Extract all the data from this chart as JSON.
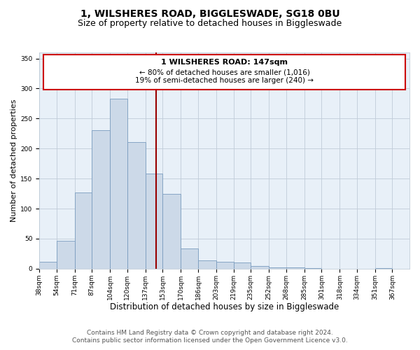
{
  "title": "1, WILSHERES ROAD, BIGGLESWADE, SG18 0BU",
  "subtitle": "Size of property relative to detached houses in Biggleswade",
  "xlabel": "Distribution of detached houses by size in Biggleswade",
  "ylabel": "Number of detached properties",
  "bin_labels": [
    "38sqm",
    "54sqm",
    "71sqm",
    "87sqm",
    "104sqm",
    "120sqm",
    "137sqm",
    "153sqm",
    "170sqm",
    "186sqm",
    "203sqm",
    "219sqm",
    "235sqm",
    "252sqm",
    "268sqm",
    "285sqm",
    "301sqm",
    "318sqm",
    "334sqm",
    "351sqm",
    "367sqm"
  ],
  "bin_edges": [
    38,
    54,
    71,
    87,
    104,
    120,
    137,
    153,
    170,
    186,
    203,
    219,
    235,
    252,
    268,
    285,
    301,
    318,
    334,
    351,
    367,
    383
  ],
  "bar_heights": [
    12,
    47,
    127,
    231,
    283,
    211,
    158,
    125,
    34,
    14,
    12,
    10,
    5,
    2,
    2,
    1,
    0,
    0,
    0,
    1,
    0
  ],
  "bar_color": "#ccd9e8",
  "bar_edgecolor": "#7a9cbf",
  "vline_x": 147,
  "vline_color": "#990000",
  "ylim": [
    0,
    360
  ],
  "yticks": [
    0,
    50,
    100,
    150,
    200,
    250,
    300,
    350
  ],
  "annotation_title": "1 WILSHERES ROAD: 147sqm",
  "annotation_line1": "← 80% of detached houses are smaller (1,016)",
  "annotation_line2": "19% of semi-detached houses are larger (240) →",
  "annotation_box_facecolor": "#ffffff",
  "annotation_box_edgecolor": "#cc0000",
  "footer_line1": "Contains HM Land Registry data © Crown copyright and database right 2024.",
  "footer_line2": "Contains public sector information licensed under the Open Government Licence v3.0.",
  "bg_color": "#ffffff",
  "plot_bg_color": "#e8f0f8",
  "grid_color": "#c0ccd8",
  "title_fontsize": 10,
  "subtitle_fontsize": 9,
  "xlabel_fontsize": 8.5,
  "ylabel_fontsize": 8,
  "tick_fontsize": 6.5,
  "footer_fontsize": 6.5,
  "annotation_title_fontsize": 8,
  "annotation_text_fontsize": 7.5
}
